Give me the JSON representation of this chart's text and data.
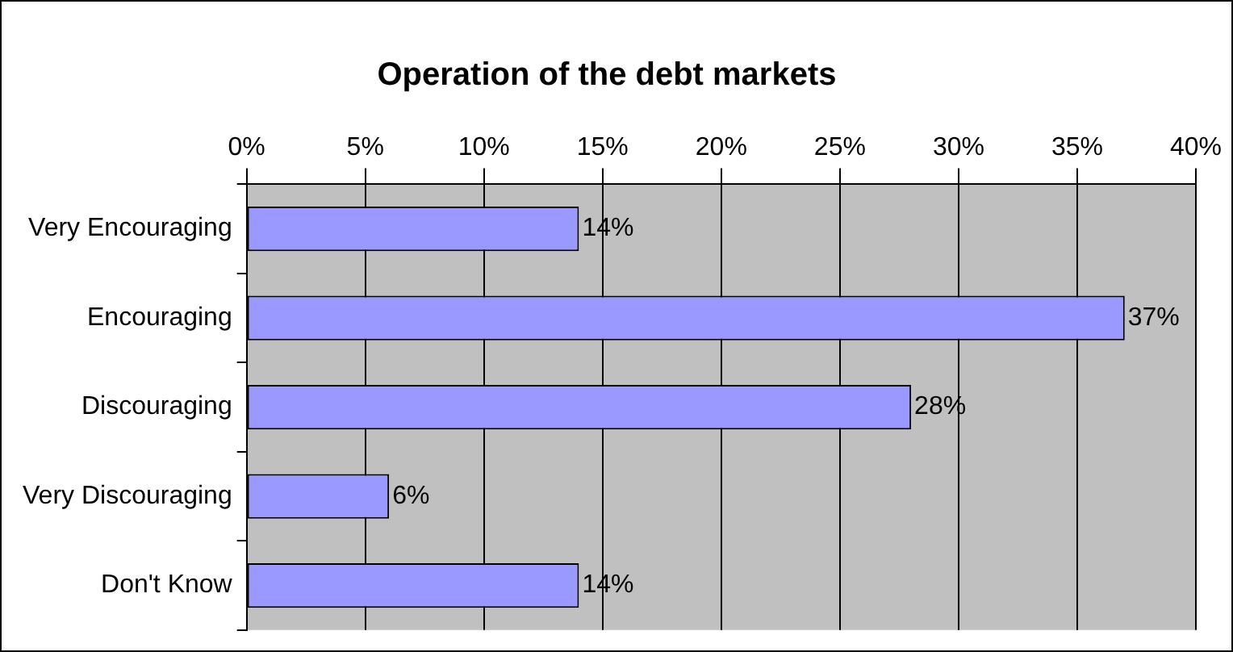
{
  "chart_data": {
    "type": "bar",
    "orientation": "horizontal",
    "title": "Operation of the debt markets",
    "categories": [
      "Very Encouraging",
      "Encouraging",
      "Discouraging",
      "Very Discouraging",
      "Don't Know"
    ],
    "values": [
      14,
      37,
      28,
      6,
      14
    ],
    "value_labels": [
      "14%",
      "37%",
      "28%",
      "6%",
      "14%"
    ],
    "color": "#9999ff",
    "xlim": [
      0,
      40
    ],
    "xticks": [
      {
        "value": 0,
        "label": "0%"
      },
      {
        "value": 5,
        "label": "5%"
      },
      {
        "value": 10,
        "label": "10%"
      },
      {
        "value": 15,
        "label": "15%"
      },
      {
        "value": 20,
        "label": "20%"
      },
      {
        "value": 25,
        "label": "25%"
      },
      {
        "value": 30,
        "label": "30%"
      },
      {
        "value": 35,
        "label": "35%"
      },
      {
        "value": 40,
        "label": "40%"
      }
    ],
    "grid": "x"
  }
}
